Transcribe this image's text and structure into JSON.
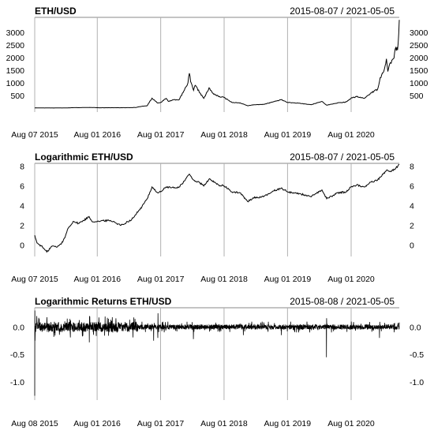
{
  "chart_data": [
    {
      "type": "line",
      "title": "ETH/USD",
      "date_range": "2015-08-07 / 2021-05-05",
      "x_start": "2015-08-07",
      "x_end": "2021-05-05",
      "ylim": [
        -100,
        3600
      ],
      "y_ticks": [
        "500",
        "1000",
        "1500",
        "2000",
        "2500",
        "3000"
      ],
      "x_ticks": [
        {
          "date": "2015-08-07",
          "label": "Aug 07 2015"
        },
        {
          "date": "2016-08-01",
          "label": "Aug 01 2016"
        },
        {
          "date": "2017-08-01",
          "label": "Aug 01 2017"
        },
        {
          "date": "2018-08-01",
          "label": "Aug 01 2018"
        },
        {
          "date": "2019-08-01",
          "label": "Aug 01 2019"
        },
        {
          "date": "2020-08-01",
          "label": "Aug 01 2020"
        }
      ],
      "grid": true,
      "points": [
        [
          "2015-08-07",
          3
        ],
        [
          "2015-10-15",
          0.6
        ],
        [
          "2016-01-15",
          1.5
        ],
        [
          "2016-03-15",
          11
        ],
        [
          "2016-06-15",
          18
        ],
        [
          "2016-08-01",
          11
        ],
        [
          "2016-11-01",
          10
        ],
        [
          "2017-01-15",
          10
        ],
        [
          "2017-03-10",
          20
        ],
        [
          "2017-03-31",
          50
        ],
        [
          "2017-05-15",
          90
        ],
        [
          "2017-06-12",
          390
        ],
        [
          "2017-07-15",
          195
        ],
        [
          "2017-08-01",
          220
        ],
        [
          "2017-09-01",
          380
        ],
        [
          "2017-09-15",
          260
        ],
        [
          "2017-10-15",
          330
        ],
        [
          "2017-11-15",
          330
        ],
        [
          "2017-12-15",
          700
        ],
        [
          "2018-01-05",
          1000
        ],
        [
          "2018-01-13",
          1380
        ],
        [
          "2018-01-20",
          1050
        ],
        [
          "2018-02-06",
          700
        ],
        [
          "2018-02-15",
          900
        ],
        [
          "2018-03-15",
          600
        ],
        [
          "2018-04-06",
          380
        ],
        [
          "2018-05-01",
          700
        ],
        [
          "2018-05-06",
          800
        ],
        [
          "2018-05-25",
          600
        ],
        [
          "2018-07-01",
          450
        ],
        [
          "2018-08-01",
          420
        ],
        [
          "2018-09-15",
          220
        ],
        [
          "2018-11-01",
          200
        ],
        [
          "2018-12-15",
          85
        ],
        [
          "2019-01-15",
          125
        ],
        [
          "2019-03-15",
          140
        ],
        [
          "2019-05-15",
          250
        ],
        [
          "2019-06-26",
          330
        ],
        [
          "2019-08-01",
          220
        ],
        [
          "2019-10-15",
          180
        ],
        [
          "2019-12-15",
          130
        ],
        [
          "2020-02-15",
          260
        ],
        [
          "2020-03-13",
          110
        ],
        [
          "2020-05-15",
          200
        ],
        [
          "2020-07-01",
          230
        ],
        [
          "2020-08-01",
          390
        ],
        [
          "2020-09-02",
          450
        ],
        [
          "2020-10-15",
          380
        ],
        [
          "2020-11-24",
          600
        ],
        [
          "2020-12-31",
          740
        ],
        [
          "2021-01-15",
          1200
        ],
        [
          "2021-02-01",
          1400
        ],
        [
          "2021-02-20",
          1950
        ],
        [
          "2021-02-28",
          1450
        ],
        [
          "2021-03-15",
          1800
        ],
        [
          "2021-04-01",
          1950
        ],
        [
          "2021-04-15",
          2400
        ],
        [
          "2021-04-25",
          2300
        ],
        [
          "2021-05-02",
          2950
        ],
        [
          "2021-05-05",
          3500
        ]
      ]
    },
    {
      "type": "line",
      "title": "Logarithmic ETH/USD",
      "date_range": "2015-08-07 / 2021-05-05",
      "x_start": "2015-08-07",
      "x_end": "2021-05-05",
      "ylim": [
        -1,
        8.3
      ],
      "y_ticks": [
        "0",
        "2",
        "4",
        "6",
        "8"
      ],
      "x_ticks": [
        {
          "date": "2015-08-07",
          "label": "Aug 07 2015"
        },
        {
          "date": "2016-08-01",
          "label": "Aug 01 2016"
        },
        {
          "date": "2017-08-01",
          "label": "Aug 01 2017"
        },
        {
          "date": "2018-08-01",
          "label": "Aug 01 2018"
        },
        {
          "date": "2019-08-01",
          "label": "Aug 01 2019"
        },
        {
          "date": "2020-08-01",
          "label": "Aug 01 2020"
        }
      ],
      "grid": true,
      "points": [
        [
          "2015-08-07",
          1.0
        ],
        [
          "2015-08-20",
          0.2
        ],
        [
          "2015-09-15",
          -0.1
        ],
        [
          "2015-10-15",
          -0.7
        ],
        [
          "2015-11-15",
          -0.1
        ],
        [
          "2015-12-15",
          -0.2
        ],
        [
          "2016-01-15",
          0.3
        ],
        [
          "2016-02-01",
          1.0
        ],
        [
          "2016-02-15",
          1.7
        ],
        [
          "2016-03-15",
          2.4
        ],
        [
          "2016-04-15",
          2.2
        ],
        [
          "2016-05-15",
          2.5
        ],
        [
          "2016-06-15",
          2.9
        ],
        [
          "2016-07-01",
          2.4
        ],
        [
          "2016-08-01",
          2.4
        ],
        [
          "2016-10-01",
          2.5
        ],
        [
          "2016-11-01",
          2.4
        ],
        [
          "2016-12-15",
          2.0
        ],
        [
          "2017-01-15",
          2.3
        ],
        [
          "2017-02-15",
          2.6
        ],
        [
          "2017-03-15",
          3.2
        ],
        [
          "2017-04-15",
          3.9
        ],
        [
          "2017-05-15",
          4.7
        ],
        [
          "2017-06-12",
          5.9
        ],
        [
          "2017-07-15",
          5.3
        ],
        [
          "2017-08-01",
          5.4
        ],
        [
          "2017-09-01",
          5.9
        ],
        [
          "2017-10-15",
          5.8
        ],
        [
          "2017-11-15",
          5.9
        ],
        [
          "2017-12-15",
          6.5
        ],
        [
          "2018-01-13",
          7.2
        ],
        [
          "2018-02-06",
          6.6
        ],
        [
          "2018-03-15",
          6.3
        ],
        [
          "2018-04-06",
          6.0
        ],
        [
          "2018-05-06",
          6.7
        ],
        [
          "2018-07-01",
          6.1
        ],
        [
          "2018-08-01",
          6.0
        ],
        [
          "2018-09-15",
          5.4
        ],
        [
          "2018-11-01",
          5.3
        ],
        [
          "2018-12-15",
          4.4
        ],
        [
          "2019-01-15",
          4.8
        ],
        [
          "2019-03-15",
          4.9
        ],
        [
          "2019-05-15",
          5.5
        ],
        [
          "2019-06-26",
          5.8
        ],
        [
          "2019-08-01",
          5.4
        ],
        [
          "2019-10-15",
          5.2
        ],
        [
          "2019-12-15",
          4.9
        ],
        [
          "2020-02-15",
          5.6
        ],
        [
          "2020-03-13",
          4.7
        ],
        [
          "2020-05-15",
          5.3
        ],
        [
          "2020-07-01",
          5.4
        ],
        [
          "2020-08-01",
          5.9
        ],
        [
          "2020-09-02",
          6.1
        ],
        [
          "2020-10-15",
          5.9
        ],
        [
          "2020-11-24",
          6.4
        ],
        [
          "2020-12-31",
          6.6
        ],
        [
          "2021-02-01",
          7.2
        ],
        [
          "2021-02-20",
          7.6
        ],
        [
          "2021-03-15",
          7.5
        ],
        [
          "2021-04-15",
          7.8
        ],
        [
          "2021-05-05",
          8.2
        ]
      ]
    },
    {
      "type": "line",
      "title": "Logarithmic Returns ETH/USD",
      "date_range": "2015-08-08 / 2021-05-05",
      "x_start": "2015-08-08",
      "x_end": "2021-05-05",
      "ylim": [
        -1.3,
        0.35
      ],
      "y_ticks": [
        "-1.0",
        "-0.5",
        "0.0"
      ],
      "x_ticks": [
        {
          "date": "2015-08-08",
          "label": "Aug 08 2015"
        },
        {
          "date": "2016-08-01",
          "label": "Aug 01 2016"
        },
        {
          "date": "2017-08-01",
          "label": "Aug 01 2017"
        },
        {
          "date": "2018-08-01",
          "label": "Aug 01 2018"
        },
        {
          "date": "2019-08-01",
          "label": "Aug 01 2019"
        },
        {
          "date": "2020-08-01",
          "label": "Aug 01 2020"
        }
      ],
      "grid": true,
      "series_note": "",
      "points": [
        [
          "2015-08-08",
          -1.25
        ],
        [
          "2015-08-09",
          0.3
        ],
        [
          "2015-08-10",
          -0.25
        ],
        [
          "2015-08-20",
          0.2
        ],
        [
          "2016-06-17",
          -0.28
        ],
        [
          "2016-06-18",
          0.2
        ],
        [
          "2017-06-22",
          -0.25
        ],
        [
          "2017-07-16",
          -0.2
        ],
        [
          "2017-07-17",
          0.25
        ],
        [
          "2018-02-06",
          -0.22
        ],
        [
          "2018-11-20",
          -0.15
        ],
        [
          "2019-06-27",
          -0.15
        ],
        [
          "2020-03-12",
          -0.55
        ],
        [
          "2020-03-13",
          0.16
        ],
        [
          "2021-01-11",
          -0.2
        ],
        [
          "2021-05-05",
          0.08
        ]
      ]
    }
  ]
}
